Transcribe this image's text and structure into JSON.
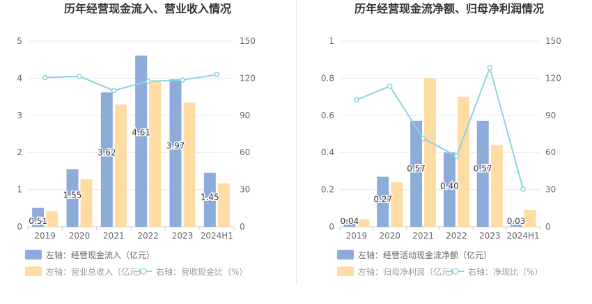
{
  "chart_data": [
    {
      "type": "bar",
      "title": "历年经营现金流入、营业收入情况",
      "categories": [
        "2019",
        "2020",
        "2021",
        "2022",
        "2023",
        "2024H1"
      ],
      "ylim_left": [
        0,
        5
      ],
      "ylim_right": [
        0,
        150
      ],
      "yticks_left": [
        "0",
        "1",
        "2",
        "3",
        "4",
        "5"
      ],
      "yticks_right": [
        "0",
        "30",
        "60",
        "90",
        "120",
        "150"
      ],
      "series": [
        {
          "name": "左轴：经营现金流入（亿元）",
          "axis": "left",
          "kind": "bar",
          "color": "#8eacd9",
          "values": [
            0.51,
            1.55,
            3.62,
            4.61,
            3.97,
            1.45
          ],
          "labels": [
            "0.51",
            "1.55",
            "3.62",
            "4.61",
            "3.97",
            "1.45"
          ]
        },
        {
          "name": "左轴：营业总收入（亿元）",
          "axis": "left",
          "kind": "bar",
          "color": "#ffdca4",
          "values": [
            0.42,
            1.28,
            3.29,
            3.92,
            3.34,
            1.17
          ]
        },
        {
          "name": "右轴：营收现金比（%）",
          "axis": "right",
          "kind": "line",
          "color": "#88d5de",
          "values": [
            120.5,
            121.5,
            110.0,
            117.5,
            118.5,
            123.0
          ]
        }
      ],
      "grid": true,
      "legend_position": "bottom-left"
    },
    {
      "type": "bar",
      "title": "历年经营现金流净额、归母净利润情况",
      "categories": [
        "2019",
        "2020",
        "2021",
        "2022",
        "2023",
        "2024H1"
      ],
      "ylim_left": [
        0,
        1
      ],
      "ylim_right": [
        0,
        150
      ],
      "yticks_left": [
        "0",
        "0.2",
        "0.4",
        "0.6",
        "0.8",
        "1"
      ],
      "yticks_right": [
        "0",
        "30",
        "60",
        "90",
        "120",
        "150"
      ],
      "series": [
        {
          "name": "左轴：经营活动现金流净额（亿元）",
          "axis": "left",
          "kind": "bar",
          "color": "#8eacd9",
          "values": [
            0.04,
            0.27,
            0.57,
            0.4,
            0.57,
            0.03
          ],
          "labels": [
            "0.04",
            "0.27",
            "0.57",
            "0.40",
            "0.57",
            "0.03"
          ]
        },
        {
          "name": "左轴：归母净利润（亿元）",
          "axis": "left",
          "kind": "bar",
          "color": "#ffdca4",
          "values": [
            0.04,
            0.24,
            0.8,
            0.7,
            0.44,
            0.09
          ]
        },
        {
          "name": "右轴：净现比（%）",
          "axis": "right",
          "kind": "line",
          "color": "#88d5de",
          "values": [
            102.5,
            113.5,
            71.5,
            57.0,
            128.5,
            30.5
          ]
        }
      ],
      "grid": true,
      "legend_position": "bottom-left"
    }
  ]
}
